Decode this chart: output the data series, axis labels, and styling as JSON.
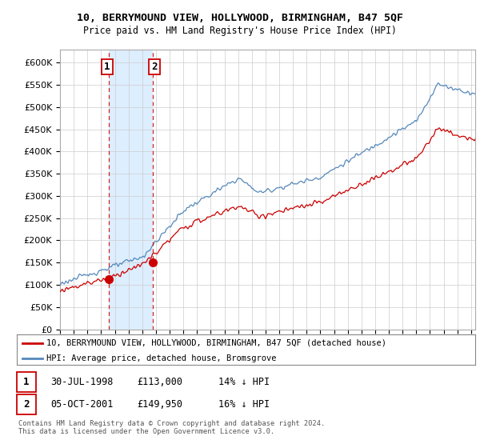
{
  "title": "10, BERRYMOUND VIEW, HOLLYWOOD, BIRMINGHAM, B47 5QF",
  "subtitle": "Price paid vs. HM Land Registry's House Price Index (HPI)",
  "ylabel_ticks": [
    "£0",
    "£50K",
    "£100K",
    "£150K",
    "£200K",
    "£250K",
    "£300K",
    "£350K",
    "£400K",
    "£450K",
    "£500K",
    "£550K",
    "£600K"
  ],
  "ylim": [
    0,
    630000
  ],
  "ytick_vals": [
    0,
    50000,
    100000,
    150000,
    200000,
    250000,
    300000,
    350000,
    400000,
    450000,
    500000,
    550000,
    600000
  ],
  "sale1_date": "30-JUL-1998",
  "sale1_price": 113000,
  "sale1_label": "1",
  "sale1_pct": "14% ↓ HPI",
  "sale2_date": "05-OCT-2001",
  "sale2_price": 149950,
  "sale2_label": "2",
  "sale2_pct": "16% ↓ HPI",
  "line1_label": "10, BERRYMOUND VIEW, HOLLYWOOD, BIRMINGHAM, B47 5QF (detached house)",
  "line2_label": "HPI: Average price, detached house, Bromsgrove",
  "footer": "Contains HM Land Registry data © Crown copyright and database right 2024.\nThis data is licensed under the Open Government Licence v3.0.",
  "red_color": "#cc0000",
  "blue_color": "#5588bb",
  "shade_color": "#ddeeff",
  "vline1_x": 1998.58,
  "vline2_x": 2001.75,
  "bg_color": "#ffffff",
  "grid_color": "#cccccc",
  "xlim_left": 1995.0,
  "xlim_right": 2025.3
}
